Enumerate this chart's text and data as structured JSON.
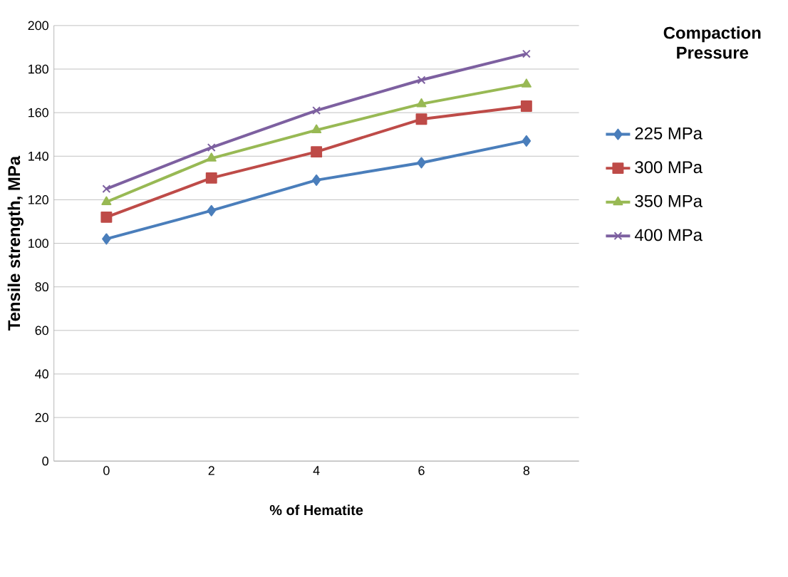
{
  "chart_data": {
    "type": "line",
    "xlabel": "% of Hematite",
    "ylabel": "Tensile strength, MPa",
    "legend_title": "Compaction Pressure",
    "categories": [
      "0",
      "2",
      "4",
      "6",
      "8"
    ],
    "series": [
      {
        "name": "225 MPa",
        "color": "#4a7ebb",
        "marker": "diamond",
        "values": [
          102,
          115,
          129,
          137,
          147
        ]
      },
      {
        "name": "300 MPa",
        "color": "#be4b48",
        "marker": "square",
        "values": [
          112,
          130,
          142,
          157,
          163
        ]
      },
      {
        "name": "350 MPa",
        "color": "#98b954",
        "marker": "triangle",
        "values": [
          119,
          139,
          152,
          164,
          173
        ]
      },
      {
        "name": "400 MPa",
        "color": "#7d60a0",
        "marker": "cross",
        "values": [
          125,
          144,
          161,
          175,
          187
        ]
      }
    ],
    "ylim": [
      0,
      200
    ],
    "yticks": [
      0,
      20,
      40,
      60,
      80,
      100,
      120,
      140,
      160,
      180,
      200
    ],
    "grid": "y",
    "legend": "right",
    "line_style": "solid"
  }
}
